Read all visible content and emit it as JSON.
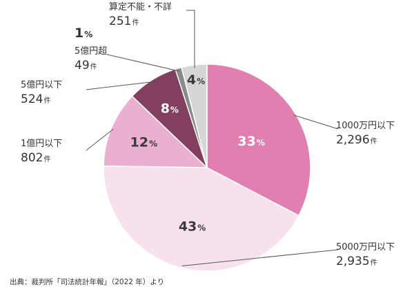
{
  "chart_data": {
    "type": "pie",
    "unit_count": "件",
    "unit_percent": "%",
    "slices": [
      {
        "label": "1000万円以下",
        "count": "2,296",
        "percent": 33,
        "color": "#e17fb0",
        "pct_color": "#ffffff"
      },
      {
        "label": "5000万円以下",
        "count": "2,935",
        "percent": 43,
        "color": "#f7e1ec",
        "pct_color": "#3a3a3a"
      },
      {
        "label": "1億円以下",
        "count": "802",
        "percent": 12,
        "color": "#ebb0cf",
        "pct_color": "#3a3a3a"
      },
      {
        "label": "5億円以下",
        "count": "524",
        "percent": 8,
        "color": "#82405e",
        "pct_color": "#ffffff"
      },
      {
        "label": "5億円超",
        "count": "49",
        "percent": 1,
        "color": "#8a8a8a",
        "pct_color": "#3a3a3a"
      },
      {
        "label": "算定不能・不詳",
        "count": "251",
        "percent": 4,
        "color": "#d6d6d6",
        "pct_color": "#3a3a3a"
      }
    ]
  },
  "source": "出典：裁判所「司法統計年報」（2022 年）より"
}
